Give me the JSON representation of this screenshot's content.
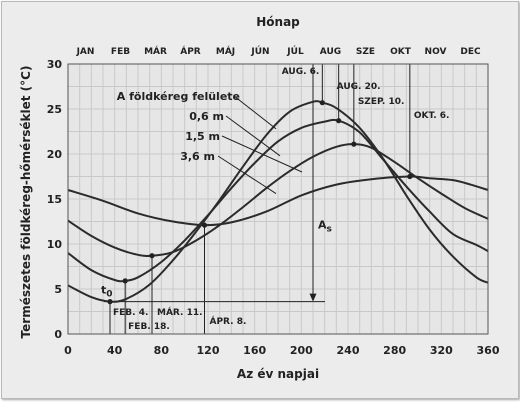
{
  "chart_data": {
    "type": "line",
    "title": "",
    "top_axis_label": "Hónap",
    "xlabel": "Az év napjai",
    "ylabel": "Természetes földkéreg-hőmérséklet (°C)",
    "xlim": [
      0,
      360
    ],
    "ylim": [
      0,
      30
    ],
    "x_ticks": [
      0,
      40,
      80,
      120,
      160,
      200,
      240,
      280,
      320,
      360
    ],
    "y_ticks": [
      0,
      5,
      10,
      15,
      20,
      25,
      30
    ],
    "grid": true,
    "months": [
      "JAN",
      "FEB",
      "MÁR",
      "ÁPR",
      "MÁJ",
      "JÚN",
      "JÚL",
      "AUG",
      "SZE",
      "OKT",
      "NOV",
      "DEC"
    ],
    "series": [
      {
        "name": "A földkéreg felülete",
        "x": [
          0,
          20,
          36,
          50,
          70,
          90,
          110,
          130,
          150,
          170,
          190,
          210,
          218,
          230,
          250,
          270,
          290,
          310,
          330,
          350,
          360
        ],
        "y": [
          5.4,
          4.1,
          3.6,
          3.9,
          5.5,
          8.2,
          11.4,
          14.9,
          18.6,
          22.1,
          24.7,
          25.8,
          25.7,
          25.1,
          22.9,
          19.5,
          15.4,
          11.6,
          8.6,
          6.3,
          5.7
        ]
      },
      {
        "name": "0,6 m",
        "x": [
          0,
          20,
          40,
          49,
          60,
          80,
          100,
          120,
          140,
          160,
          180,
          200,
          220,
          232,
          250,
          270,
          290,
          310,
          330,
          350,
          360
        ],
        "y": [
          9.0,
          7.1,
          6.0,
          5.9,
          6.3,
          8.0,
          10.4,
          13.2,
          16.2,
          19.0,
          21.4,
          22.9,
          23.6,
          23.7,
          22.4,
          19.4,
          16.4,
          13.6,
          11.1,
          9.9,
          9.2
        ]
      },
      {
        "name": "1,5 m",
        "x": [
          0,
          20,
          40,
          60,
          72,
          90,
          110,
          130,
          150,
          170,
          190,
          210,
          230,
          245,
          260,
          280,
          300,
          320,
          340,
          360
        ],
        "y": [
          12.6,
          10.9,
          9.6,
          8.8,
          8.7,
          9.1,
          10.4,
          12.1,
          14.1,
          16.2,
          18.1,
          19.7,
          20.8,
          21.1,
          20.7,
          19.1,
          17.3,
          15.6,
          14.0,
          12.8
        ]
      },
      {
        "name": "3,6 m",
        "x": [
          0,
          30,
          60,
          90,
          117,
          140,
          170,
          200,
          230,
          260,
          293,
          310,
          330,
          345,
          360
        ],
        "y": [
          16.0,
          14.8,
          13.4,
          12.5,
          12.1,
          12.4,
          13.6,
          15.4,
          16.6,
          17.2,
          17.5,
          17.3,
          17.1,
          16.6,
          16.0
        ]
      }
    ],
    "labeled_points": [
      {
        "series": "A földkéreg felülete",
        "x": 36,
        "y": 3.6
      },
      {
        "series": "0,6 m",
        "x": 49,
        "y": 5.9
      },
      {
        "series": "1,5 m",
        "x": 72,
        "y": 8.7
      },
      {
        "series": "3,6 m",
        "x": 117,
        "y": 12.1
      },
      {
        "series": "A földkéreg felülete",
        "x": 218,
        "y": 25.7
      },
      {
        "series": "0,6 m",
        "x": 232,
        "y": 23.7
      },
      {
        "series": "1,5 m",
        "x": 245,
        "y": 21.1
      },
      {
        "series": "3,6 m",
        "x": 293,
        "y": 17.5
      }
    ],
    "annotations": {
      "t0": "t",
      "t0_sub": "0",
      "t0_x": 36,
      "t0_y": 3.6,
      "as_label": "A",
      "as_sub": "s",
      "as_x": 210,
      "as_y_top": 30,
      "as_y_bottom": 3.6,
      "min_dates": [
        {
          "text": "FEB. 4.",
          "x": 36
        },
        {
          "text": "FEB. 18.",
          "x": 49
        },
        {
          "text": "MÁR. 11.",
          "x": 72
        },
        {
          "text": "ÁPR. 8.",
          "x": 117
        }
      ],
      "max_dates": [
        {
          "text": "AUG. 6.",
          "x": 218
        },
        {
          "text": "AUG. 20.",
          "x": 232
        },
        {
          "text": "SZEP. 10.",
          "x": 245
        },
        {
          "text": "OKT. 6.",
          "x": 293
        }
      ]
    }
  }
}
